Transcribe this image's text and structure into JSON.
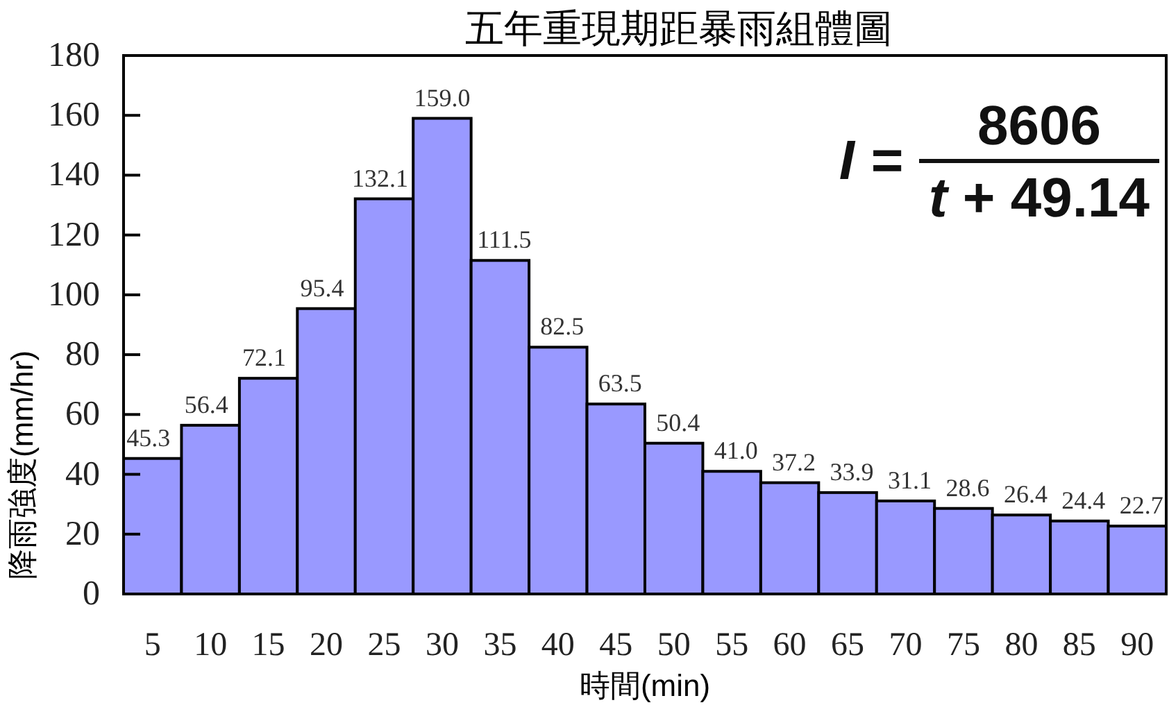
{
  "chart_data": {
    "type": "bar",
    "title": "五年重現期距暴雨組體圖",
    "xlabel": "時間(min)",
    "ylabel": "降雨強度(mm/hr)",
    "categories": [
      "5",
      "10",
      "15",
      "20",
      "25",
      "30",
      "35",
      "40",
      "45",
      "50",
      "55",
      "60",
      "65",
      "70",
      "75",
      "80",
      "85",
      "90"
    ],
    "values": [
      45.3,
      56.4,
      72.1,
      95.4,
      132.1,
      159.0,
      111.5,
      82.5,
      63.5,
      50.4,
      41.0,
      37.2,
      33.9,
      31.1,
      28.6,
      26.4,
      24.4,
      22.7
    ],
    "value_labels": [
      "45.3",
      "56.4",
      "72.1",
      "95.4",
      "132.1",
      "159.0",
      "111.5",
      "82.5",
      "63.5",
      "50.4",
      "41.0",
      "37.2",
      "33.9",
      "31.1",
      "28.6",
      "26.4",
      "24.4",
      "22.7"
    ],
    "color": "#9999ff",
    "ylim": [
      0,
      180
    ],
    "yticks": [
      0,
      20,
      40,
      60,
      80,
      100,
      120,
      140,
      160,
      180
    ],
    "annotations": [
      "I =",
      "8606",
      "t + 49.14"
    ]
  }
}
